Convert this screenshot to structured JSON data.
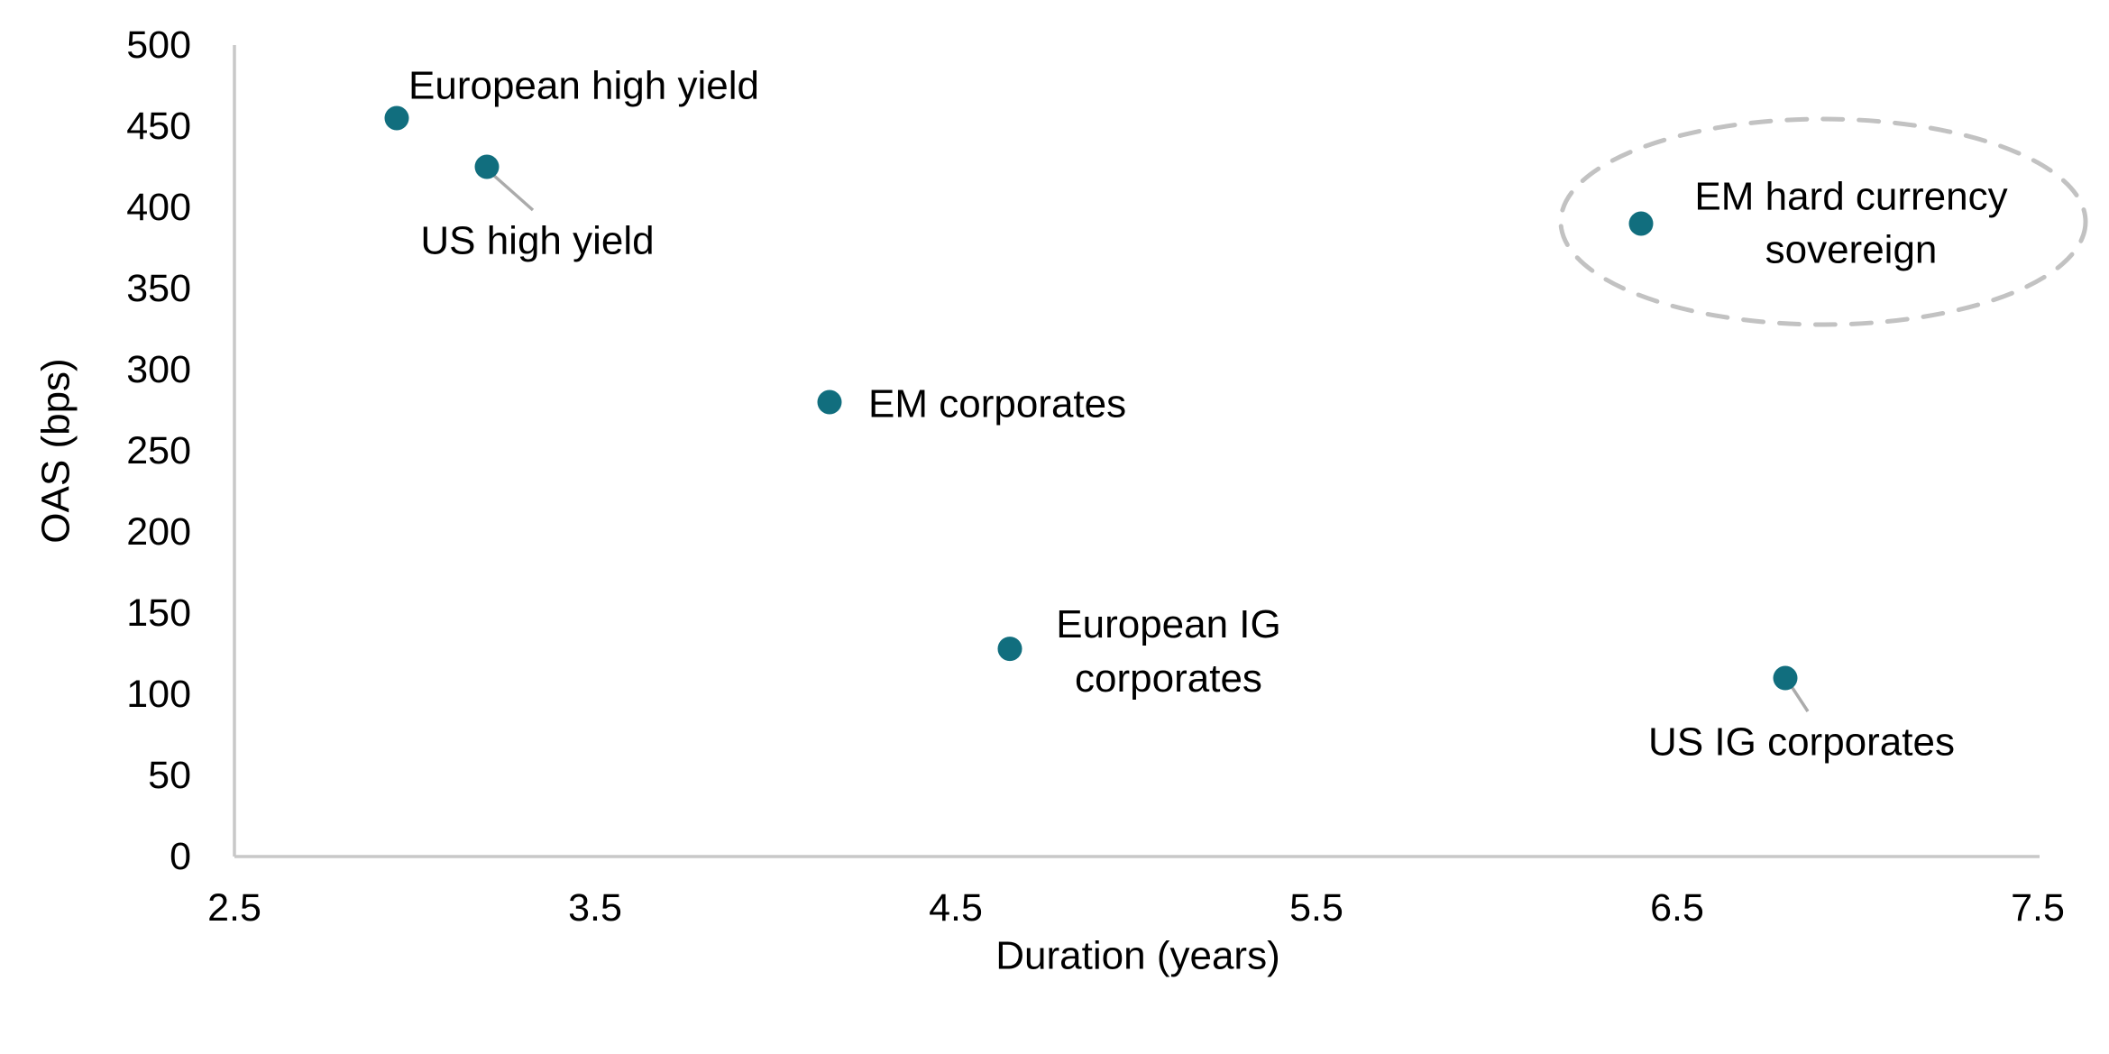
{
  "chart": {
    "background": "#ffffff",
    "text_color": "#000000",
    "axis_color": "#c8c8c8",
    "leader_line_color": "#ababab",
    "point_color": "#116e7e",
    "ellipse_color": "#c2c2c2"
  },
  "chart_data": {
    "type": "scatter",
    "title": "",
    "xlabel": "Duration (years)",
    "ylabel": "OAS (bps)",
    "xlim": [
      2.5,
      7.5
    ],
    "ylim": [
      0,
      500
    ],
    "grid": false,
    "legend": false,
    "x_ticks": [
      2.5,
      3.5,
      4.5,
      5.5,
      6.5,
      7.5
    ],
    "y_ticks": [
      0,
      50,
      100,
      150,
      200,
      250,
      300,
      350,
      400,
      450,
      500
    ],
    "points": [
      {
        "label": "European high yield",
        "label_lines": [
          "European high yield"
        ],
        "x": 2.95,
        "y": 455
      },
      {
        "label": "US high yield",
        "label_lines": [
          "US high yield"
        ],
        "x": 3.2,
        "y": 425
      },
      {
        "label": "EM corporates",
        "label_lines": [
          "EM corporates"
        ],
        "x": 4.15,
        "y": 280
      },
      {
        "label": "European IG corporates",
        "label_lines": [
          "European IG",
          "corporates"
        ],
        "x": 4.65,
        "y": 128
      },
      {
        "label": "EM hard currency sovereign",
        "label_lines": [
          "EM hard currency",
          "sovereign"
        ],
        "x": 6.4,
        "y": 390,
        "highlighted": true
      },
      {
        "label": "US IG corporates",
        "label_lines": [
          "US IG corporates"
        ],
        "x": 6.8,
        "y": 110
      }
    ],
    "annotations": [
      {
        "type": "dashed-ellipse",
        "around_point": "EM hard currency sovereign"
      }
    ]
  }
}
